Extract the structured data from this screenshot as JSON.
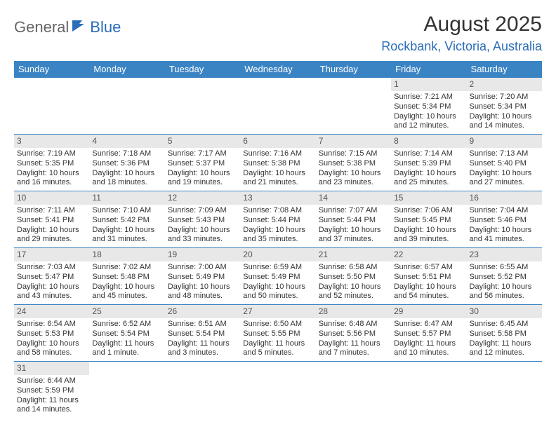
{
  "logo": {
    "text1": "General",
    "text2": "Blue"
  },
  "title": "August 2025",
  "location": "Rockbank, Victoria, Australia",
  "colors": {
    "header_bg": "#3b84c4",
    "header_text": "#ffffff",
    "accent": "#2a6db8",
    "daynum_bg": "#e8e8e8",
    "border": "#3b84c4",
    "text": "#333333"
  },
  "weekdays": [
    "Sunday",
    "Monday",
    "Tuesday",
    "Wednesday",
    "Thursday",
    "Friday",
    "Saturday"
  ],
  "weeks": [
    [
      null,
      null,
      null,
      null,
      null,
      {
        "n": "1",
        "sr": "Sunrise: 7:21 AM",
        "ss": "Sunset: 5:34 PM",
        "dl1": "Daylight: 10 hours",
        "dl2": "and 12 minutes."
      },
      {
        "n": "2",
        "sr": "Sunrise: 7:20 AM",
        "ss": "Sunset: 5:34 PM",
        "dl1": "Daylight: 10 hours",
        "dl2": "and 14 minutes."
      }
    ],
    [
      {
        "n": "3",
        "sr": "Sunrise: 7:19 AM",
        "ss": "Sunset: 5:35 PM",
        "dl1": "Daylight: 10 hours",
        "dl2": "and 16 minutes."
      },
      {
        "n": "4",
        "sr": "Sunrise: 7:18 AM",
        "ss": "Sunset: 5:36 PM",
        "dl1": "Daylight: 10 hours",
        "dl2": "and 18 minutes."
      },
      {
        "n": "5",
        "sr": "Sunrise: 7:17 AM",
        "ss": "Sunset: 5:37 PM",
        "dl1": "Daylight: 10 hours",
        "dl2": "and 19 minutes."
      },
      {
        "n": "6",
        "sr": "Sunrise: 7:16 AM",
        "ss": "Sunset: 5:38 PM",
        "dl1": "Daylight: 10 hours",
        "dl2": "and 21 minutes."
      },
      {
        "n": "7",
        "sr": "Sunrise: 7:15 AM",
        "ss": "Sunset: 5:38 PM",
        "dl1": "Daylight: 10 hours",
        "dl2": "and 23 minutes."
      },
      {
        "n": "8",
        "sr": "Sunrise: 7:14 AM",
        "ss": "Sunset: 5:39 PM",
        "dl1": "Daylight: 10 hours",
        "dl2": "and 25 minutes."
      },
      {
        "n": "9",
        "sr": "Sunrise: 7:13 AM",
        "ss": "Sunset: 5:40 PM",
        "dl1": "Daylight: 10 hours",
        "dl2": "and 27 minutes."
      }
    ],
    [
      {
        "n": "10",
        "sr": "Sunrise: 7:11 AM",
        "ss": "Sunset: 5:41 PM",
        "dl1": "Daylight: 10 hours",
        "dl2": "and 29 minutes."
      },
      {
        "n": "11",
        "sr": "Sunrise: 7:10 AM",
        "ss": "Sunset: 5:42 PM",
        "dl1": "Daylight: 10 hours",
        "dl2": "and 31 minutes."
      },
      {
        "n": "12",
        "sr": "Sunrise: 7:09 AM",
        "ss": "Sunset: 5:43 PM",
        "dl1": "Daylight: 10 hours",
        "dl2": "and 33 minutes."
      },
      {
        "n": "13",
        "sr": "Sunrise: 7:08 AM",
        "ss": "Sunset: 5:44 PM",
        "dl1": "Daylight: 10 hours",
        "dl2": "and 35 minutes."
      },
      {
        "n": "14",
        "sr": "Sunrise: 7:07 AM",
        "ss": "Sunset: 5:44 PM",
        "dl1": "Daylight: 10 hours",
        "dl2": "and 37 minutes."
      },
      {
        "n": "15",
        "sr": "Sunrise: 7:06 AM",
        "ss": "Sunset: 5:45 PM",
        "dl1": "Daylight: 10 hours",
        "dl2": "and 39 minutes."
      },
      {
        "n": "16",
        "sr": "Sunrise: 7:04 AM",
        "ss": "Sunset: 5:46 PM",
        "dl1": "Daylight: 10 hours",
        "dl2": "and 41 minutes."
      }
    ],
    [
      {
        "n": "17",
        "sr": "Sunrise: 7:03 AM",
        "ss": "Sunset: 5:47 PM",
        "dl1": "Daylight: 10 hours",
        "dl2": "and 43 minutes."
      },
      {
        "n": "18",
        "sr": "Sunrise: 7:02 AM",
        "ss": "Sunset: 5:48 PM",
        "dl1": "Daylight: 10 hours",
        "dl2": "and 45 minutes."
      },
      {
        "n": "19",
        "sr": "Sunrise: 7:00 AM",
        "ss": "Sunset: 5:49 PM",
        "dl1": "Daylight: 10 hours",
        "dl2": "and 48 minutes."
      },
      {
        "n": "20",
        "sr": "Sunrise: 6:59 AM",
        "ss": "Sunset: 5:49 PM",
        "dl1": "Daylight: 10 hours",
        "dl2": "and 50 minutes."
      },
      {
        "n": "21",
        "sr": "Sunrise: 6:58 AM",
        "ss": "Sunset: 5:50 PM",
        "dl1": "Daylight: 10 hours",
        "dl2": "and 52 minutes."
      },
      {
        "n": "22",
        "sr": "Sunrise: 6:57 AM",
        "ss": "Sunset: 5:51 PM",
        "dl1": "Daylight: 10 hours",
        "dl2": "and 54 minutes."
      },
      {
        "n": "23",
        "sr": "Sunrise: 6:55 AM",
        "ss": "Sunset: 5:52 PM",
        "dl1": "Daylight: 10 hours",
        "dl2": "and 56 minutes."
      }
    ],
    [
      {
        "n": "24",
        "sr": "Sunrise: 6:54 AM",
        "ss": "Sunset: 5:53 PM",
        "dl1": "Daylight: 10 hours",
        "dl2": "and 58 minutes."
      },
      {
        "n": "25",
        "sr": "Sunrise: 6:52 AM",
        "ss": "Sunset: 5:54 PM",
        "dl1": "Daylight: 11 hours",
        "dl2": "and 1 minute."
      },
      {
        "n": "26",
        "sr": "Sunrise: 6:51 AM",
        "ss": "Sunset: 5:54 PM",
        "dl1": "Daylight: 11 hours",
        "dl2": "and 3 minutes."
      },
      {
        "n": "27",
        "sr": "Sunrise: 6:50 AM",
        "ss": "Sunset: 5:55 PM",
        "dl1": "Daylight: 11 hours",
        "dl2": "and 5 minutes."
      },
      {
        "n": "28",
        "sr": "Sunrise: 6:48 AM",
        "ss": "Sunset: 5:56 PM",
        "dl1": "Daylight: 11 hours",
        "dl2": "and 7 minutes."
      },
      {
        "n": "29",
        "sr": "Sunrise: 6:47 AM",
        "ss": "Sunset: 5:57 PM",
        "dl1": "Daylight: 11 hours",
        "dl2": "and 10 minutes."
      },
      {
        "n": "30",
        "sr": "Sunrise: 6:45 AM",
        "ss": "Sunset: 5:58 PM",
        "dl1": "Daylight: 11 hours",
        "dl2": "and 12 minutes."
      }
    ],
    [
      {
        "n": "31",
        "sr": "Sunrise: 6:44 AM",
        "ss": "Sunset: 5:59 PM",
        "dl1": "Daylight: 11 hours",
        "dl2": "and 14 minutes."
      },
      null,
      null,
      null,
      null,
      null,
      null
    ]
  ]
}
